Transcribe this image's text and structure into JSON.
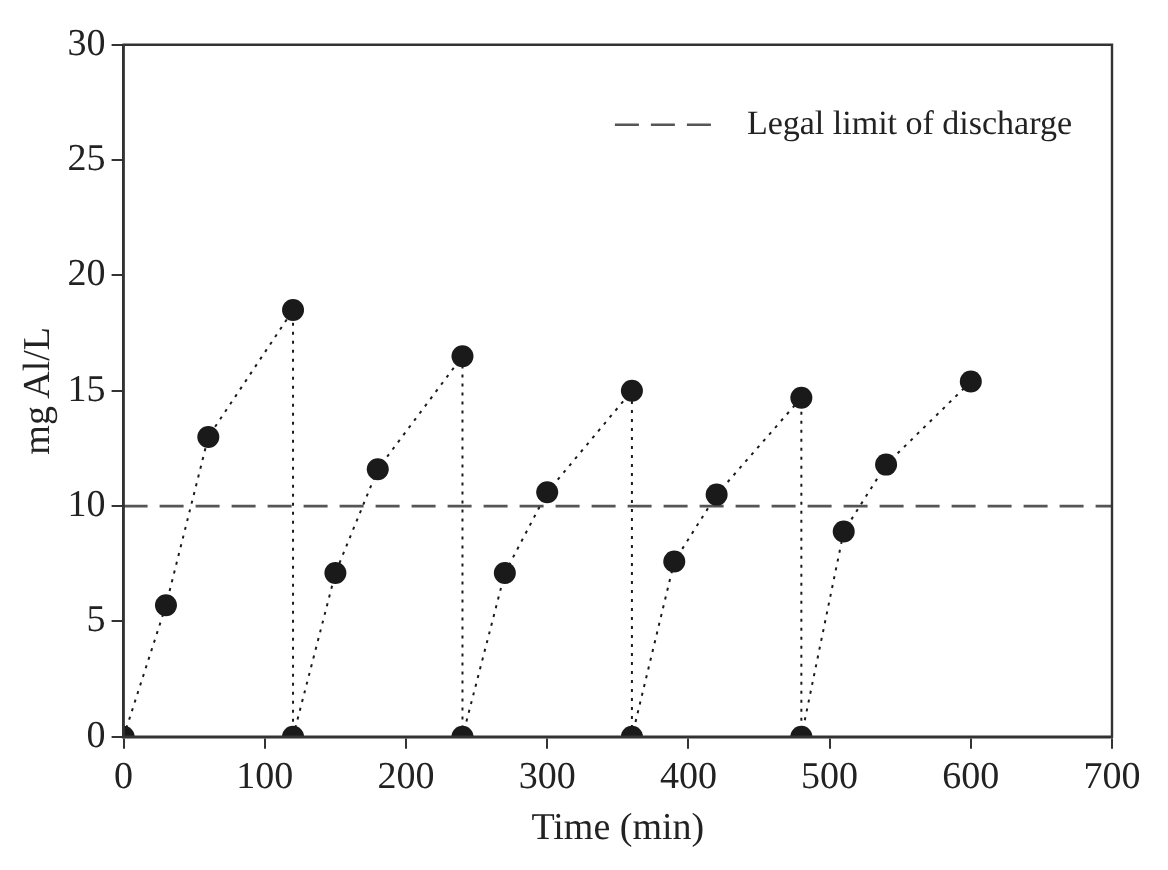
{
  "chart_data": {
    "type": "line",
    "xlabel": "Time (min)",
    "ylabel": "mg Al/L",
    "x": [
      0,
      30,
      60,
      120,
      120,
      150,
      180,
      240,
      240,
      270,
      300,
      360,
      360,
      390,
      420,
      480,
      480,
      510,
      540,
      600
    ],
    "series": [
      {
        "color": "#1a1a1a",
        "values": [
          0,
          5.7,
          13,
          18.5,
          0,
          7.1,
          11.6,
          16.5,
          0,
          7.1,
          10.6,
          15,
          0,
          7.6,
          10.5,
          14.7,
          0,
          8.9,
          11.8,
          15.4
        ]
      }
    ],
    "marker": "circle",
    "line_style": "dotted",
    "xlim": [
      0,
      700
    ],
    "xticks": [
      0,
      100,
      200,
      300,
      400,
      500,
      600,
      700
    ],
    "ylim": [
      0,
      30
    ],
    "yticks": [
      0,
      5,
      10,
      15,
      20,
      25,
      30
    ],
    "ref_lines": [
      {
        "axis": "y",
        "value": 10,
        "label": "Legal limit of discharge",
        "color": "#555555",
        "line_style": "dashed"
      }
    ],
    "grid": false,
    "legend": "top right"
  }
}
